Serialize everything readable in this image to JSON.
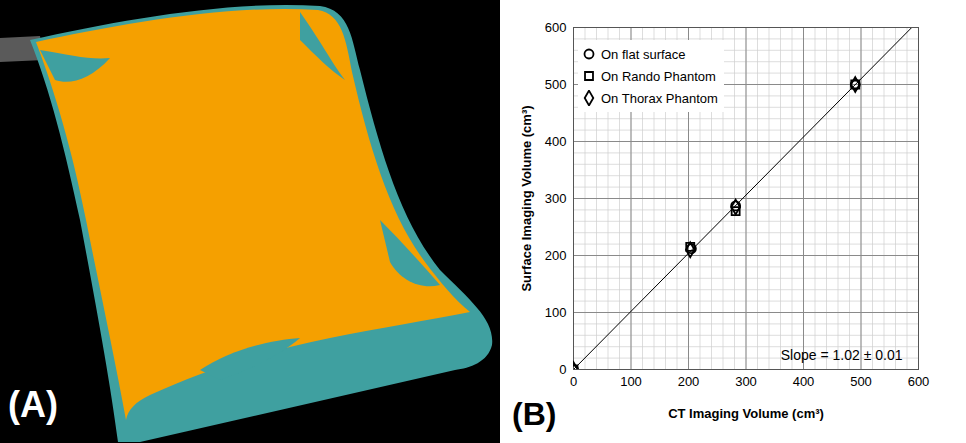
{
  "panel_labels": [
    "(A)",
    "(B)"
  ],
  "chart_data": {
    "type": "scatter",
    "xlabel": "CT Imaging Volume (cm³)",
    "ylabel": "Surface Imaging Volume (cm³)",
    "xlim": [
      0,
      600
    ],
    "ylim": [
      0,
      600
    ],
    "xticks": [
      0,
      100,
      200,
      300,
      400,
      500,
      600
    ],
    "yticks": [
      0,
      100,
      200,
      300,
      400,
      500,
      600
    ],
    "grid": true,
    "legend": "top-left",
    "series": [
      {
        "name": "On flat surface",
        "marker": "circle",
        "color": "#000000",
        "x": [
          0,
          205,
          282,
          490
        ],
        "values": [
          0,
          212,
          287,
          500
        ]
      },
      {
        "name": "On Rando Phantom",
        "marker": "square",
        "color": "#000000",
        "x": [
          0,
          203,
          282,
          490
        ],
        "values": [
          0,
          215,
          278,
          500
        ]
      },
      {
        "name": "On Thorax Phantom",
        "marker": "diamond",
        "color": "#000000",
        "x": [
          0,
          203,
          282,
          490
        ],
        "values": [
          0,
          210,
          285,
          500
        ]
      }
    ],
    "fit": {
      "slope": 1.02,
      "intercept": 0,
      "color": "#000000",
      "line_style": "solid"
    },
    "annotations": [
      "Slope = 1.02 ± 0.01"
    ]
  }
}
